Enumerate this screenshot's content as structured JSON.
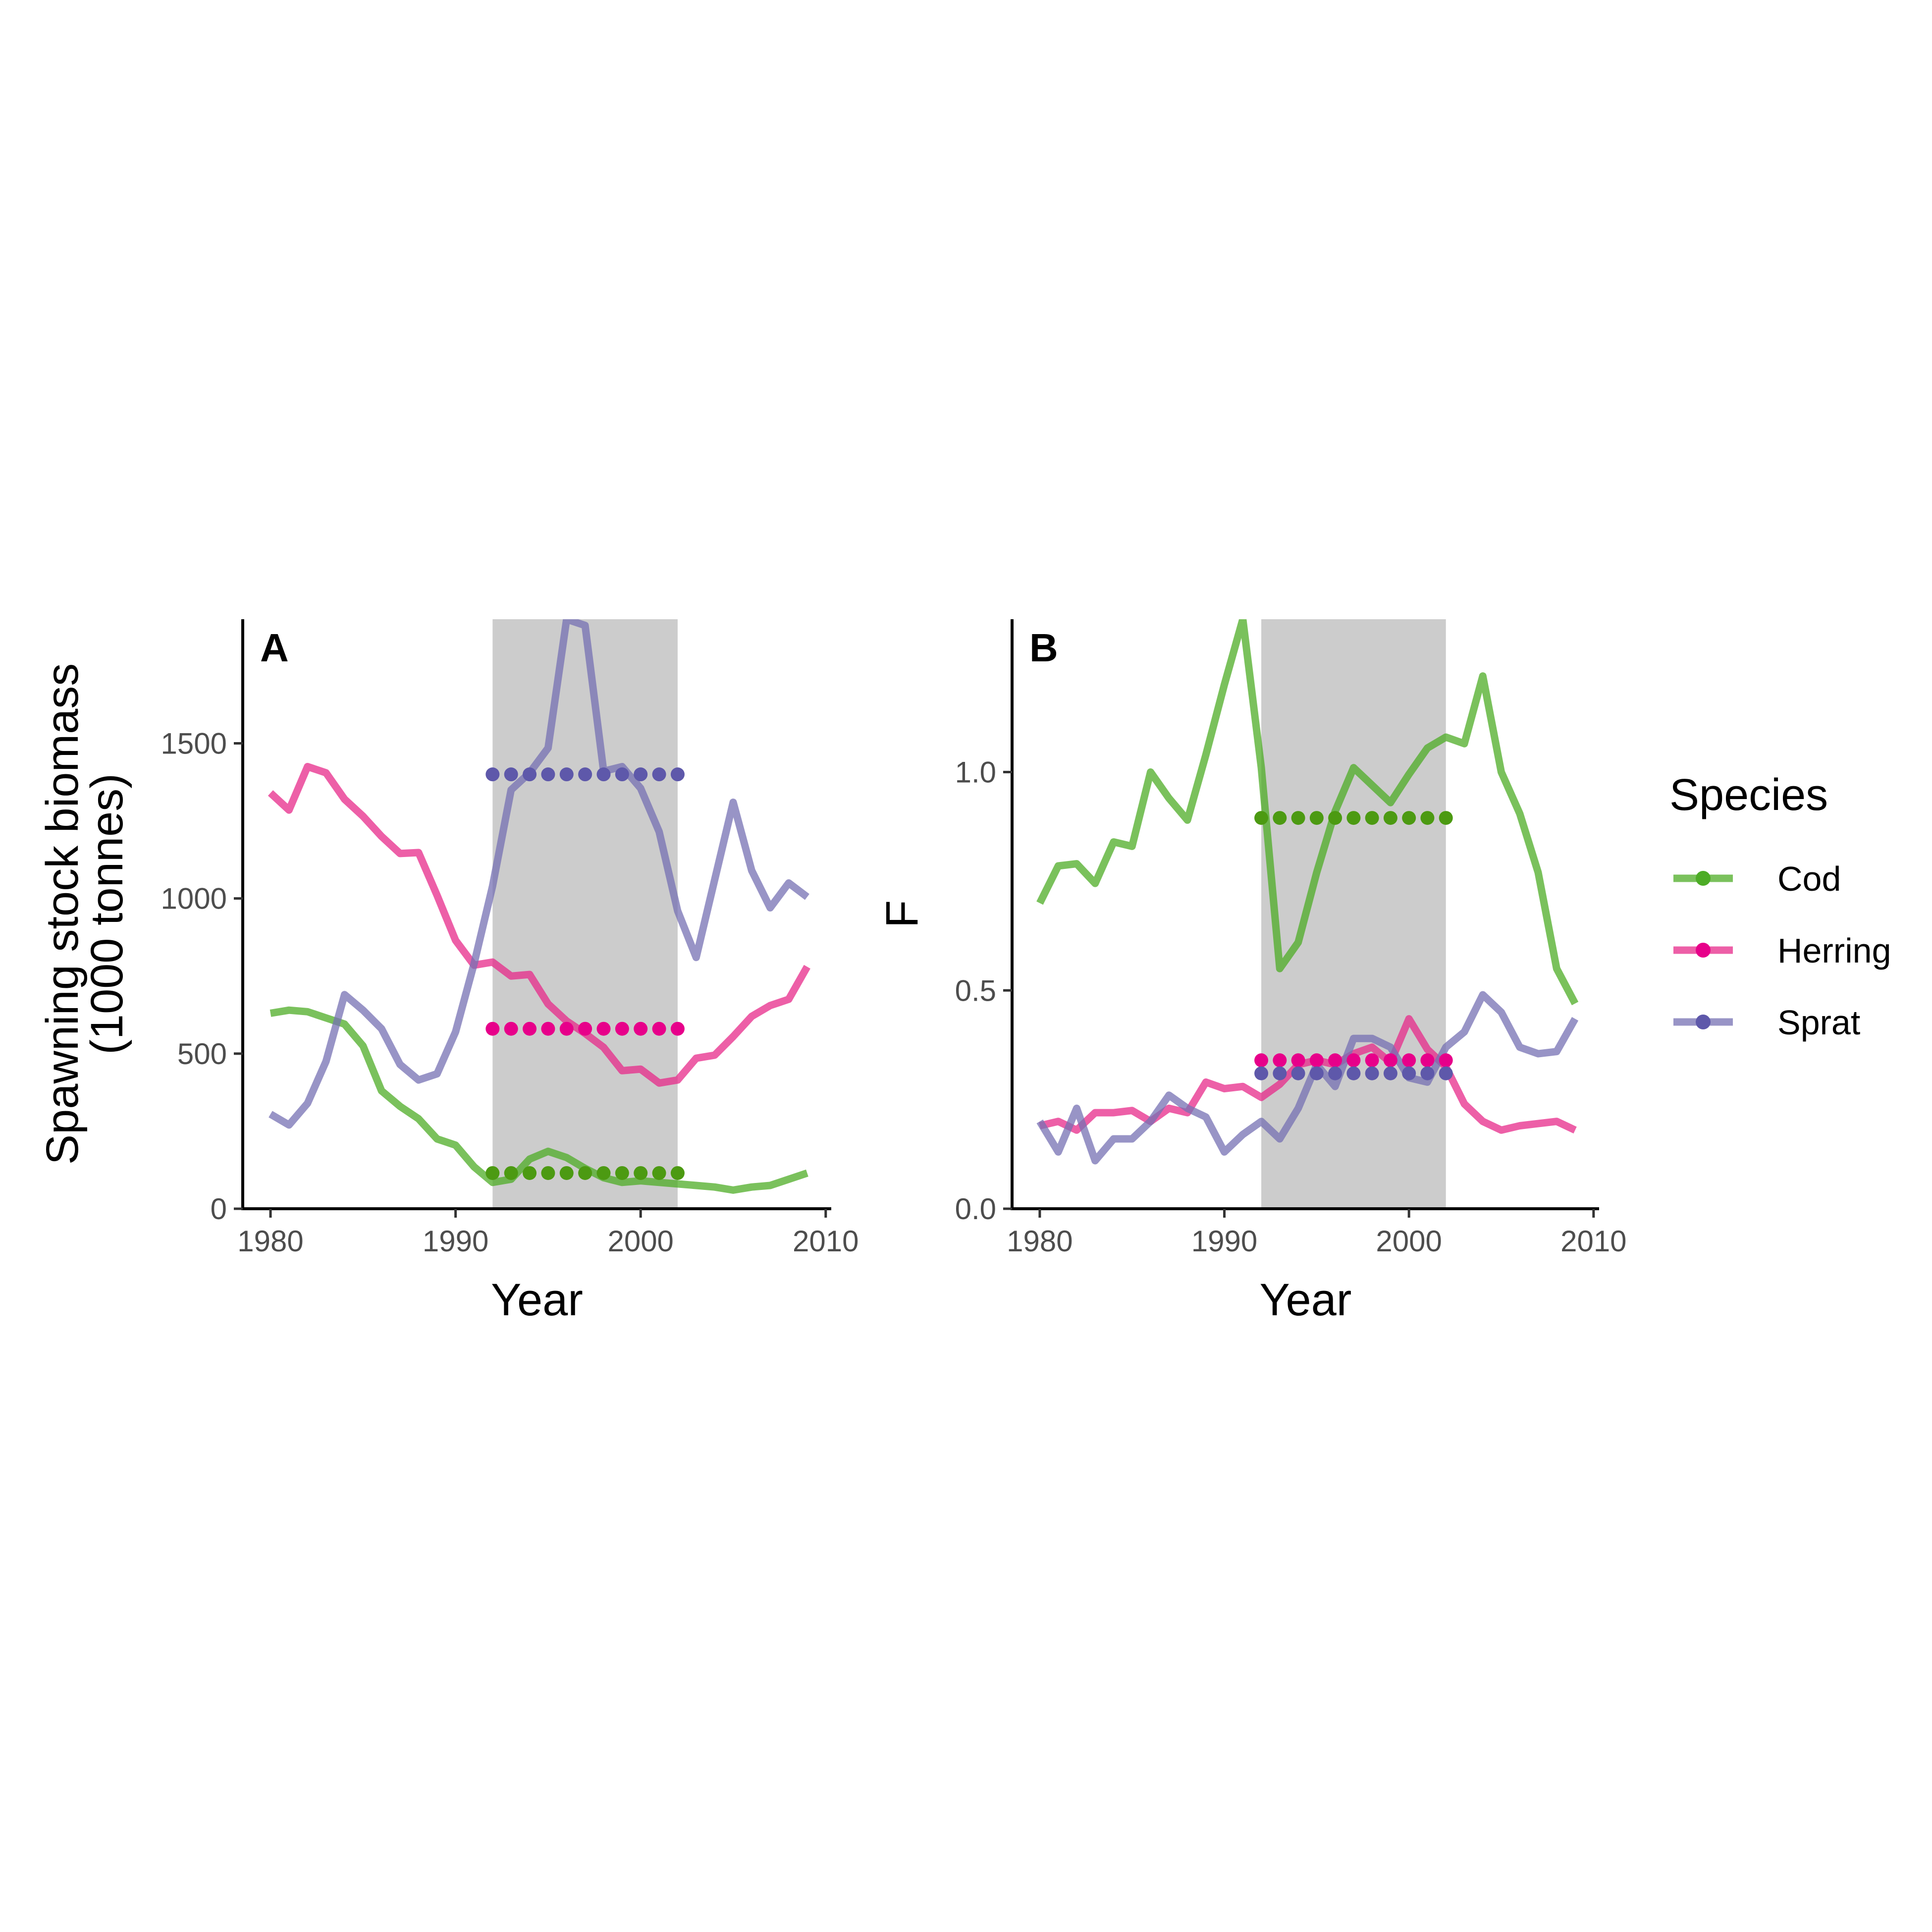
{
  "legend": {
    "title": "Species",
    "entries": [
      {
        "name": "Cod",
        "color": "#4DAC26"
      },
      {
        "name": "Herring",
        "color": "#E7298A"
      },
      {
        "name": "Sprat",
        "color": "#7570B3"
      }
    ]
  },
  "chart_data": [
    {
      "type": "line",
      "panel_label": "A",
      "xlabel": "Year",
      "ylabel": "Spawning stock biomass\n(1000 tonnes)",
      "xlim": [
        1978.5,
        2010.3
      ],
      "ylim": [
        0,
        1900
      ],
      "xticks": [
        1980,
        1990,
        2000,
        2010
      ],
      "yticks": [
        0,
        500,
        1000,
        1500
      ],
      "shaded_period": [
        1992,
        2002
      ],
      "x": [
        1980,
        1981,
        1982,
        1983,
        1984,
        1985,
        1986,
        1987,
        1988,
        1989,
        1990,
        1991,
        1992,
        1993,
        1994,
        1995,
        1996,
        1997,
        1998,
        1999,
        2000,
        2001,
        2002,
        2003,
        2004,
        2005,
        2006,
        2007,
        2008,
        2009
      ],
      "series": [
        {
          "name": "Cod",
          "color": "#4DAC26",
          "values": [
            630,
            640,
            635,
            615,
            595,
            525,
            380,
            330,
            290,
            225,
            205,
            135,
            85,
            95,
            160,
            185,
            165,
            130,
            100,
            85,
            90,
            85,
            80,
            75,
            70,
            60,
            70,
            75,
            95,
            115
          ],
          "reference_level": 115
        },
        {
          "name": "Herring",
          "color": "#E7298A",
          "values": [
            1340,
            1285,
            1425,
            1405,
            1320,
            1265,
            1200,
            1145,
            1148,
            1010,
            865,
            785,
            795,
            750,
            755,
            660,
            605,
            565,
            520,
            445,
            450,
            405,
            415,
            485,
            495,
            555,
            620,
            655,
            675,
            780
          ],
          "reference_level": 580
        },
        {
          "name": "Sprat",
          "color": "#7570B3",
          "values": [
            305,
            270,
            340,
            475,
            690,
            640,
            580,
            465,
            415,
            435,
            570,
            790,
            1040,
            1350,
            1405,
            1485,
            1900,
            1880,
            1410,
            1425,
            1355,
            1215,
            960,
            810,
            1060,
            1310,
            1090,
            970,
            1050,
            1005
          ],
          "reference_level": 1400
        }
      ]
    },
    {
      "type": "line",
      "panel_label": "B",
      "xlabel": "Year",
      "ylabel": "F",
      "xlim": [
        1978.5,
        2010.3
      ],
      "ylim": [
        0,
        1.35
      ],
      "xticks": [
        1980,
        1990,
        2000,
        2010
      ],
      "yticks": [
        "0.0",
        "0.5",
        "1.0"
      ],
      "shaded_period": [
        1992,
        2002
      ],
      "x": [
        1980,
        1981,
        1982,
        1983,
        1984,
        1985,
        1986,
        1987,
        1988,
        1989,
        1990,
        1991,
        1992,
        1993,
        1994,
        1995,
        1996,
        1997,
        1998,
        1999,
        2000,
        2001,
        2002,
        2003,
        2004,
        2005,
        2006,
        2007,
        2008,
        2009
      ],
      "series": [
        {
          "name": "Cod",
          "color": "#4DAC26",
          "values": [
            0.7,
            0.785,
            0.79,
            0.745,
            0.84,
            0.83,
            1.0,
            0.94,
            0.89,
            1.04,
            1.2,
            1.35,
            1.01,
            0.55,
            0.61,
            0.77,
            0.91,
            1.01,
            0.97,
            0.93,
            0.995,
            1.055,
            1.08,
            1.065,
            1.22,
            1.0,
            0.905,
            0.77,
            0.55,
            0.47
          ],
          "reference_level": 0.895
        },
        {
          "name": "Herring",
          "color": "#E7298A",
          "values": [
            0.19,
            0.2,
            0.18,
            0.22,
            0.22,
            0.225,
            0.2,
            0.23,
            0.22,
            0.29,
            0.275,
            0.28,
            0.255,
            0.285,
            0.33,
            0.34,
            0.33,
            0.355,
            0.37,
            0.335,
            0.435,
            0.365,
            0.325,
            0.24,
            0.2,
            0.18,
            0.19,
            0.195,
            0.2,
            0.18
          ],
          "reference_level": 0.34
        },
        {
          "name": "Sprat",
          "color": "#7570B3",
          "values": [
            0.2,
            0.13,
            0.23,
            0.11,
            0.16,
            0.16,
            0.2,
            0.26,
            0.23,
            0.21,
            0.13,
            0.17,
            0.2,
            0.16,
            0.23,
            0.33,
            0.28,
            0.39,
            0.39,
            0.37,
            0.3,
            0.29,
            0.37,
            0.405,
            0.49,
            0.45,
            0.37,
            0.355,
            0.36,
            0.435
          ],
          "reference_level": 0.31
        }
      ]
    }
  ]
}
